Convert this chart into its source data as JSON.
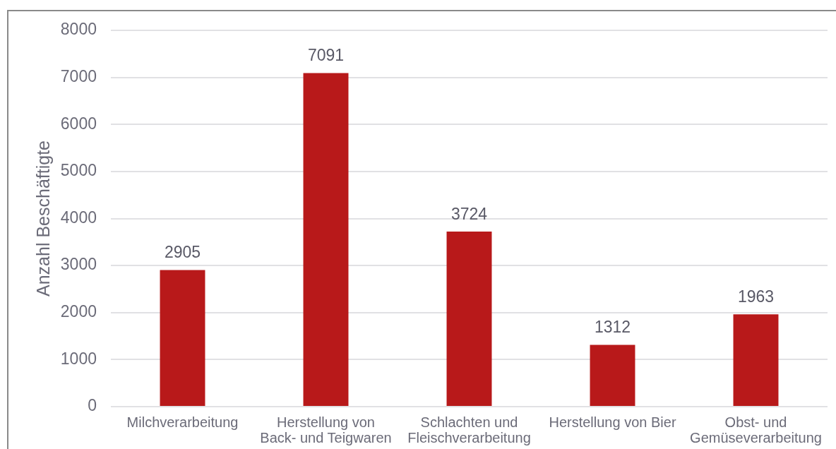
{
  "chart_data": {
    "type": "bar",
    "ylabel": "Anzahl Beschäftigte",
    "categories": [
      "Milchverarbeitung",
      "Herstellung von Back- und Teigwaren",
      "Schlachten und Fleischverarbeitung",
      "Herstellung von Bier",
      "Obst- und Gemüseverarbeitung"
    ],
    "values": [
      2905,
      7091,
      3724,
      1312,
      1963
    ],
    "color": "#b8191a",
    "ylim": [
      0,
      8000
    ],
    "yticks": [
      0,
      1000,
      2000,
      3000,
      4000,
      5000,
      6000,
      7000,
      8000
    ],
    "grid": "y",
    "data_labels": true
  }
}
